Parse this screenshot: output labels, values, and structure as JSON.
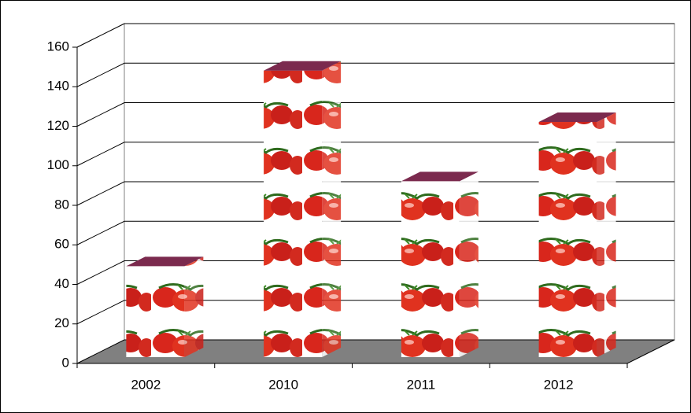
{
  "chart_data": {
    "type": "bar3d",
    "categories": [
      "2002",
      "2010",
      "2011",
      "2012"
    ],
    "values": [
      46,
      145,
      89,
      119
    ],
    "top_color": "#7b2a4e",
    "floor_color": "#808080",
    "ylim": [
      0,
      160
    ],
    "yticks": [
      0,
      20,
      40,
      60,
      80,
      100,
      120,
      140,
      160
    ],
    "grid": true
  }
}
